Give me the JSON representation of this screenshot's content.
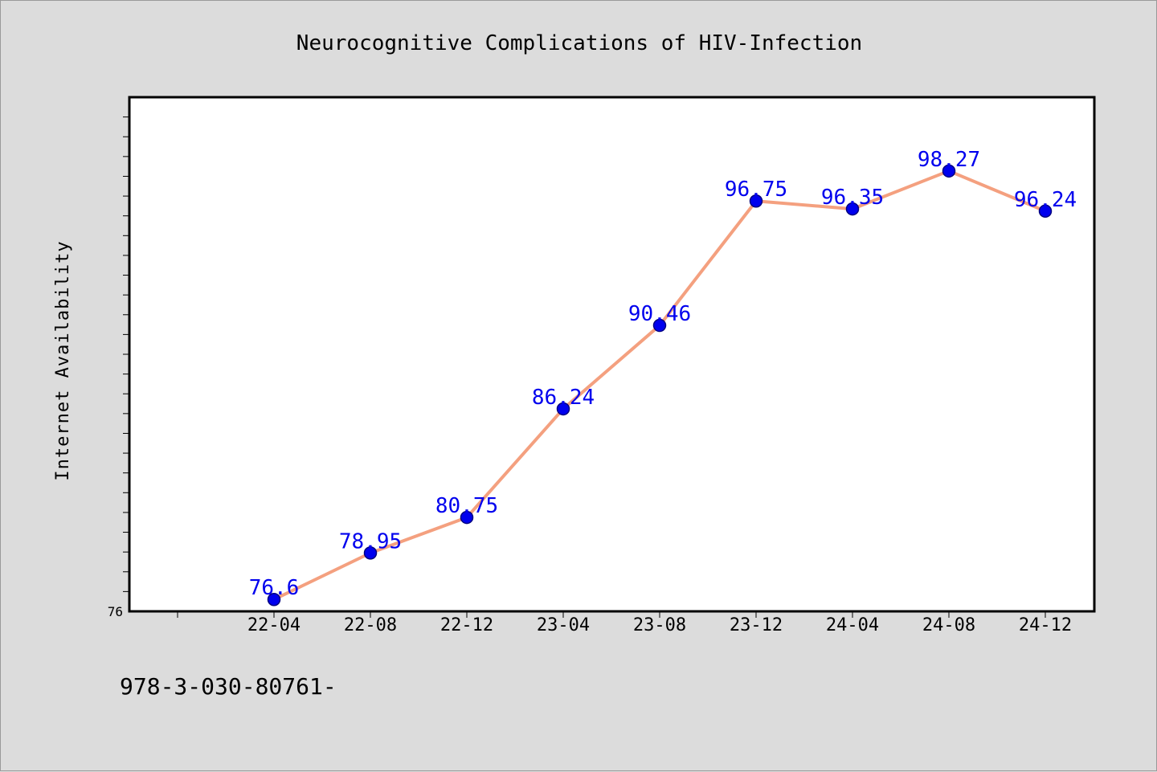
{
  "chart_data": {
    "type": "line",
    "title": "Neurocognitive Complications of HIV-Infection",
    "ylabel": "Internet Availability",
    "xlabel": "",
    "categories": [
      "22-04",
      "22-08",
      "22-12",
      "23-04",
      "23-08",
      "23-12",
      "24-04",
      "24-08",
      "24-12"
    ],
    "series": [
      {
        "values": [
          76.6,
          78.95,
          80.75,
          86.24,
          90.46,
          96.75,
          96.35,
          98.27,
          96.24
        ]
      }
    ],
    "data_labels": [
      "76.6",
      "78.95",
      "80.75",
      "86.24",
      "90.46",
      "96.75",
      "96.35",
      "98.27",
      "96.24"
    ],
    "y_tick_labels": [
      "76"
    ],
    "ylim": [
      76,
      102
    ],
    "grid": false,
    "legend": "none",
    "colors": {
      "line": "#f4a07f",
      "marker": "#0000ee",
      "marker_edge": "#000080",
      "data_label": "#0000ee",
      "background": "#dcdcdc",
      "plot_background": "#ffffff"
    }
  },
  "footer": {
    "text": "978-3-030-80761-"
  }
}
